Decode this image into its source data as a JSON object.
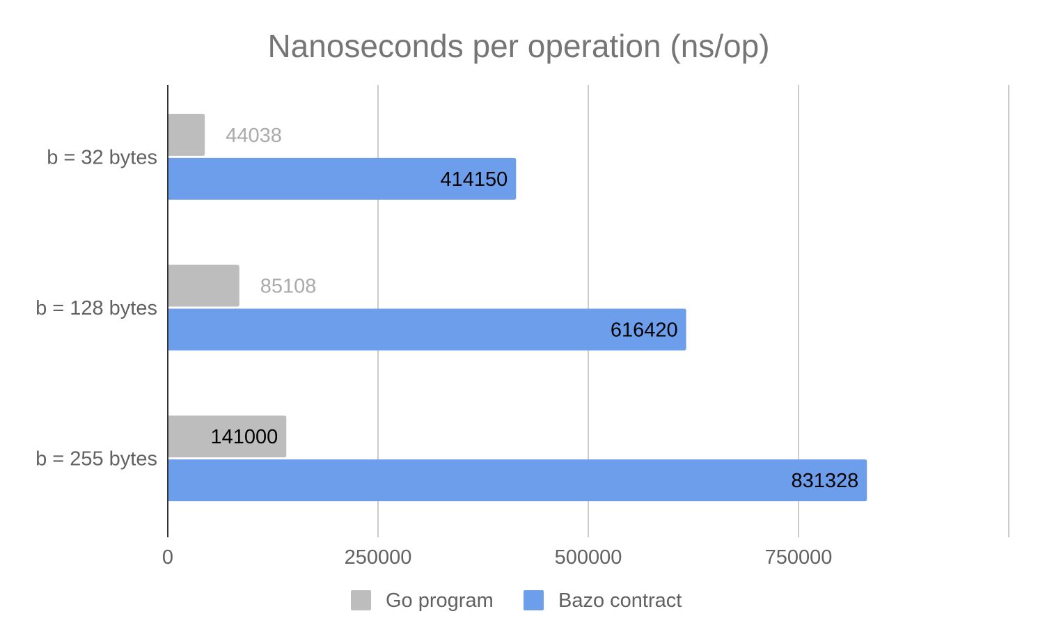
{
  "chart_data": {
    "type": "bar",
    "orientation": "horizontal",
    "title": "Nanoseconds per operation (ns/op)",
    "xlabel": "",
    "ylabel": "",
    "categories": [
      "b = 32 bytes",
      "b = 128 bytes",
      "b = 255 bytes"
    ],
    "series": [
      {
        "name": "Go program",
        "color": "#bdbdbd",
        "values": [
          44038,
          85108,
          141000
        ]
      },
      {
        "name": "Bazo contract",
        "color": "#6d9eeb",
        "values": [
          414150,
          616420,
          831328
        ]
      }
    ],
    "xlim": [
      0,
      1000000
    ],
    "xticks": [
      0,
      250000,
      500000,
      750000
    ],
    "xtick_labels": [
      "0",
      "250000",
      "500000",
      "750000"
    ],
    "grid": true,
    "legend_position": "bottom",
    "data_labels": true
  }
}
